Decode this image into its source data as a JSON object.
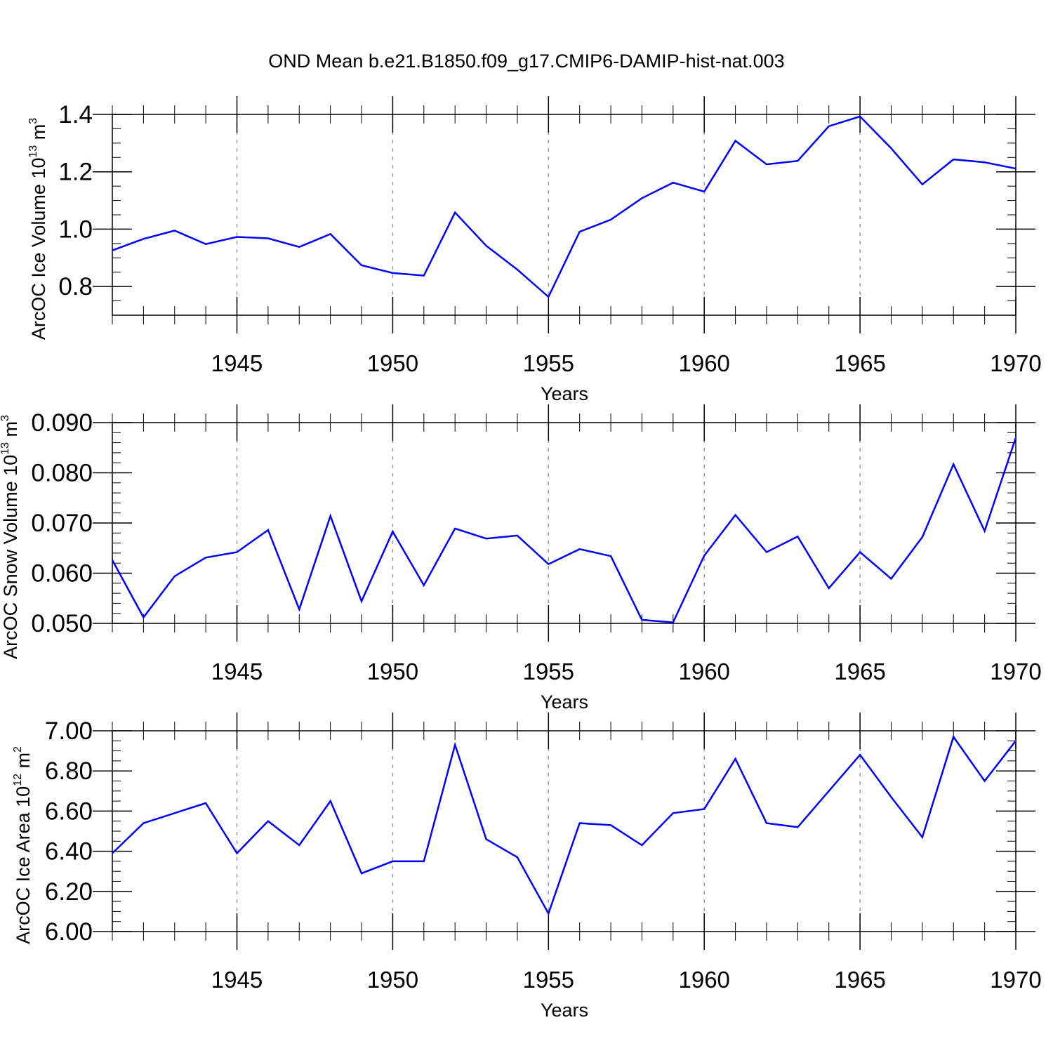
{
  "chart_data": [
    {
      "type": "line",
      "title": "OND Mean b.e21.B1850.f09_g17.CMIP6-DAMIP-hist-nat.003",
      "ylabel": {
        "text": "ArcOC Ice Volume 10",
        "exp": "13",
        "unit": " m",
        "unit_exp": "3"
      },
      "xlabel": "Years",
      "xlim": [
        1941,
        1970
      ],
      "ylim": [
        0.7,
        1.4
      ],
      "yticks": [
        0.8,
        1.0,
        1.2,
        1.4
      ],
      "ytick_labels": [
        "0.8",
        "1.0",
        "1.2",
        "1.4"
      ],
      "yminor_step": 0.05,
      "xticks": [
        1945,
        1950,
        1955,
        1960,
        1965,
        1970
      ],
      "xtick_labels": [
        "1945",
        "1950",
        "1955",
        "1960",
        "1965",
        "1970"
      ],
      "grid_x": [
        1945,
        1950,
        1955,
        1960,
        1965
      ],
      "line_color": "#0000ff",
      "series": [
        {
          "name": "Ice Volume",
          "x": [
            1941,
            1942,
            1943,
            1944,
            1945,
            1946,
            1947,
            1948,
            1949,
            1950,
            1951,
            1952,
            1953,
            1954,
            1955,
            1956,
            1957,
            1958,
            1959,
            1960,
            1961,
            1962,
            1963,
            1964,
            1965,
            1966,
            1967,
            1968,
            1969,
            1970
          ],
          "values": [
            0.926,
            0.966,
            0.995,
            0.948,
            0.973,
            0.968,
            0.938,
            0.983,
            0.874,
            0.847,
            0.838,
            1.058,
            0.942,
            0.859,
            0.764,
            0.991,
            1.033,
            1.108,
            1.162,
            1.131,
            1.308,
            1.226,
            1.238,
            1.359,
            1.393,
            1.282,
            1.156,
            1.243,
            1.233,
            1.211
          ]
        }
      ]
    },
    {
      "type": "line",
      "title": "",
      "ylabel": {
        "text": "ArcOC Snow Volume 10",
        "exp": "13",
        "unit": " m",
        "unit_exp": "3"
      },
      "xlabel": "Years",
      "xlim": [
        1941,
        1970
      ],
      "ylim": [
        0.05,
        0.09
      ],
      "yticks": [
        0.05,
        0.06,
        0.07,
        0.08,
        0.09
      ],
      "ytick_labels": [
        "0.050",
        "0.060",
        "0.070",
        "0.080",
        "0.090"
      ],
      "yminor_step": 0.002,
      "xticks": [
        1945,
        1950,
        1955,
        1960,
        1965,
        1970
      ],
      "xtick_labels": [
        "1945",
        "1950",
        "1955",
        "1960",
        "1965",
        "1970"
      ],
      "grid_x": [
        1945,
        1950,
        1955,
        1960,
        1965
      ],
      "line_color": "#0000ff",
      "series": [
        {
          "name": "Snow Volume",
          "x": [
            1941,
            1942,
            1943,
            1944,
            1945,
            1946,
            1947,
            1948,
            1949,
            1950,
            1951,
            1952,
            1953,
            1954,
            1955,
            1956,
            1957,
            1958,
            1959,
            1960,
            1961,
            1962,
            1963,
            1964,
            1965,
            1966,
            1967,
            1968,
            1969,
            1970
          ],
          "values": [
            0.0626,
            0.0512,
            0.0594,
            0.0631,
            0.0642,
            0.0686,
            0.0528,
            0.0714,
            0.0544,
            0.0683,
            0.0576,
            0.0689,
            0.0669,
            0.0675,
            0.0618,
            0.0648,
            0.0634,
            0.0507,
            0.0502,
            0.0635,
            0.0716,
            0.0642,
            0.0673,
            0.057,
            0.0642,
            0.0589,
            0.0672,
            0.0817,
            0.0684,
            0.087
          ]
        }
      ]
    },
    {
      "type": "line",
      "title": "",
      "ylabel": {
        "text": "ArcOC Ice Area 10",
        "exp": "12",
        "unit": " m",
        "unit_exp": "2"
      },
      "xlabel": "Years",
      "xlim": [
        1941,
        1970
      ],
      "ylim": [
        6.0,
        7.0
      ],
      "yticks": [
        6.0,
        6.2,
        6.4,
        6.6,
        6.8,
        7.0
      ],
      "ytick_labels": [
        "6.00",
        "6.20",
        "6.40",
        "6.60",
        "6.80",
        "7.00"
      ],
      "yminor_step": 0.05,
      "xticks": [
        1945,
        1950,
        1955,
        1960,
        1965,
        1970
      ],
      "xtick_labels": [
        "1945",
        "1950",
        "1955",
        "1960",
        "1965",
        "1970"
      ],
      "grid_x": [
        1945,
        1950,
        1955,
        1960,
        1965
      ],
      "line_color": "#0000ff",
      "series": [
        {
          "name": "Ice Area",
          "x": [
            1941,
            1942,
            1943,
            1944,
            1945,
            1946,
            1947,
            1948,
            1949,
            1950,
            1951,
            1952,
            1953,
            1954,
            1955,
            1956,
            1957,
            1958,
            1959,
            1960,
            1961,
            1962,
            1963,
            1964,
            1965,
            1966,
            1967,
            1968,
            1969,
            1970
          ],
          "values": [
            6.39,
            6.54,
            6.59,
            6.64,
            6.39,
            6.55,
            6.43,
            6.65,
            6.29,
            6.35,
            6.35,
            6.93,
            6.46,
            6.37,
            6.09,
            6.54,
            6.53,
            6.43,
            6.59,
            6.61,
            6.86,
            6.54,
            6.52,
            6.7,
            6.88,
            6.67,
            6.47,
            6.97,
            6.75,
            6.95
          ]
        }
      ]
    }
  ]
}
